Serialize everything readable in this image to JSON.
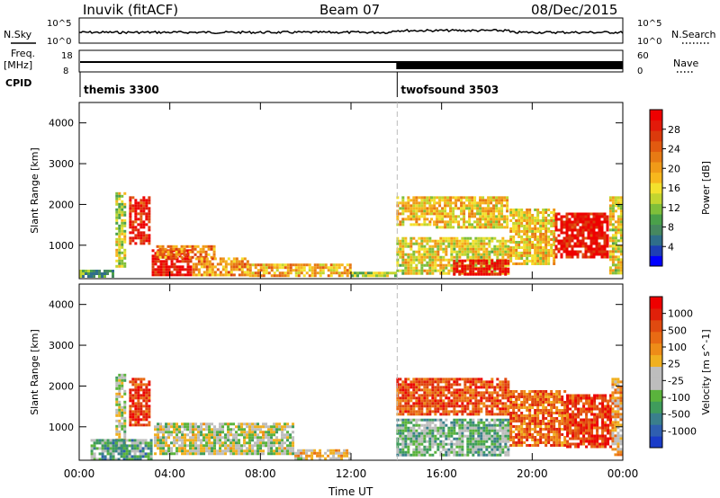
{
  "header": {
    "station": "Inuvik (fitACF)",
    "beam": "Beam 07",
    "date": "08/Dec/2015"
  },
  "top_panels": {
    "nsky_label": "N.Sky",
    "nsearch_label": "N.Search",
    "nsky_tick_hi": "10^5",
    "nsky_tick_lo": "10^0",
    "nsearch_tick_hi": "10^5",
    "nsearch_tick_lo": "10^0",
    "freq_label_1": "Freq.",
    "freq_label_2": "[MHz]",
    "freq_tick_hi": "18",
    "freq_tick_lo": "8",
    "nave_label": "Nave",
    "nave_tick_hi": "60",
    "nave_tick_lo": "0",
    "cpid_label": "CPID"
  },
  "cpid": [
    {
      "name": "themis 3300",
      "start_hour": 0
    },
    {
      "name": "twofsound 3503",
      "start_hour": 14
    }
  ],
  "power_colorbar": {
    "label": "Power [dB]",
    "ticks": [
      "28",
      "24",
      "20",
      "16",
      "12",
      "8",
      "4"
    ],
    "colors": [
      "#0000ff",
      "#1e3fb4",
      "#2f6e8a",
      "#46885f",
      "#4aa04a",
      "#7fbf3a",
      "#c2d52f",
      "#f3e12d",
      "#f7b71d",
      "#f09a18",
      "#e77a14",
      "#e25a10",
      "#db3a0c",
      "#e21a0a",
      "#ee0000"
    ]
  },
  "velocity_colorbar": {
    "label": "Velocity [m s^-1]",
    "ticks": [
      "1000",
      "500",
      "100",
      "25",
      "-25",
      "-100",
      "-500",
      "-1000"
    ],
    "colors": [
      "#1a3cc8",
      "#2f5fb0",
      "#3a7f8c",
      "#3f9c5c",
      "#5ab33c",
      "#bdbdbd",
      "#bdbdbd",
      "#f0b020",
      "#ee8c18",
      "#e86a14",
      "#e04a10",
      "#e0200a",
      "#ee0000"
    ]
  },
  "chart_data": [
    {
      "type": "heatmap",
      "name": "Power",
      "ylabel": "Slant Range [km]",
      "xlabel": "Time UT",
      "x_ticks": [
        "00:00",
        "04:00",
        "08:00",
        "12:00",
        "16:00",
        "20:00",
        "00:00"
      ],
      "x_range_hours": [
        0,
        24
      ],
      "y_ticks": [
        "1000",
        "2000",
        "3000",
        "4000"
      ],
      "y_range_km": [
        180,
        4500
      ],
      "cells": [
        {
          "t0": 1.6,
          "t1": 2.1,
          "r0": 450,
          "r1": 2300,
          "level": 0.45
        },
        {
          "t0": 2.2,
          "t1": 3.2,
          "r0": 1000,
          "r1": 2200,
          "level": 0.9
        },
        {
          "t0": 3.2,
          "t1": 5.0,
          "r0": 250,
          "r1": 900,
          "level": 0.95
        },
        {
          "t0": 3.4,
          "t1": 6.0,
          "r0": 700,
          "r1": 1000,
          "level": 0.7
        },
        {
          "t0": 5.0,
          "t1": 7.5,
          "r0": 250,
          "r1": 700,
          "level": 0.65
        },
        {
          "t0": 7.5,
          "t1": 12.0,
          "r0": 250,
          "r1": 550,
          "level": 0.6
        },
        {
          "t0": 12.0,
          "t1": 14.0,
          "r0": 200,
          "r1": 350,
          "level": 0.4
        },
        {
          "t0": 14.0,
          "t1": 15.5,
          "r0": 1500,
          "r1": 2200,
          "level": 0.55
        },
        {
          "t0": 15.5,
          "t1": 19.0,
          "r0": 1400,
          "r1": 2200,
          "level": 0.55
        },
        {
          "t0": 14.0,
          "t1": 19.0,
          "r0": 300,
          "r1": 1200,
          "level": 0.5
        },
        {
          "t0": 16.5,
          "t1": 19.0,
          "r0": 250,
          "r1": 650,
          "level": 0.95
        },
        {
          "t0": 19.0,
          "t1": 21.0,
          "r0": 500,
          "r1": 1900,
          "level": 0.55
        },
        {
          "t0": 21.0,
          "t1": 23.4,
          "r0": 650,
          "r1": 1800,
          "level": 0.95
        },
        {
          "t0": 23.4,
          "t1": 24.0,
          "r0": 300,
          "r1": 2200,
          "level": 0.5
        },
        {
          "t0": 0.0,
          "t1": 1.5,
          "r0": 200,
          "r1": 400,
          "level": 0.3
        }
      ]
    },
    {
      "type": "heatmap",
      "name": "Velocity",
      "ylabel": "Slant Range [km]",
      "xlabel": "Time UT",
      "x_ticks": [
        "00:00",
        "04:00",
        "08:00",
        "12:00",
        "16:00",
        "20:00",
        "00:00"
      ],
      "x_range_hours": [
        0,
        24
      ],
      "y_ticks": [
        "1000",
        "2000",
        "3000",
        "4000"
      ],
      "y_range_km": [
        180,
        4500
      ],
      "cells": [
        {
          "t0": 1.6,
          "t1": 2.1,
          "r0": 450,
          "r1": 2300,
          "level": 0.45
        },
        {
          "t0": 2.2,
          "t1": 3.2,
          "r0": 1000,
          "r1": 2200,
          "level": 0.85
        },
        {
          "t0": 3.3,
          "t1": 9.5,
          "r0": 300,
          "r1": 1100,
          "level": 0.45
        },
        {
          "t0": 9.5,
          "t1": 12.0,
          "r0": 200,
          "r1": 450,
          "level": 0.55
        },
        {
          "t0": 0.5,
          "t1": 3.2,
          "r0": 200,
          "r1": 700,
          "level": 0.3
        },
        {
          "t0": 14.0,
          "t1": 19.0,
          "r0": 1300,
          "r1": 2200,
          "level": 0.8
        },
        {
          "t0": 14.0,
          "t1": 19.0,
          "r0": 300,
          "r1": 1200,
          "level": 0.35
        },
        {
          "t0": 19.0,
          "t1": 21.5,
          "r0": 500,
          "r1": 1900,
          "level": 0.75
        },
        {
          "t0": 21.5,
          "t1": 23.5,
          "r0": 500,
          "r1": 1800,
          "level": 0.85
        },
        {
          "t0": 23.5,
          "t1": 24.0,
          "r0": 300,
          "r1": 2200,
          "level": 0.6
        }
      ]
    }
  ],
  "time_axis_label": "Time UT"
}
